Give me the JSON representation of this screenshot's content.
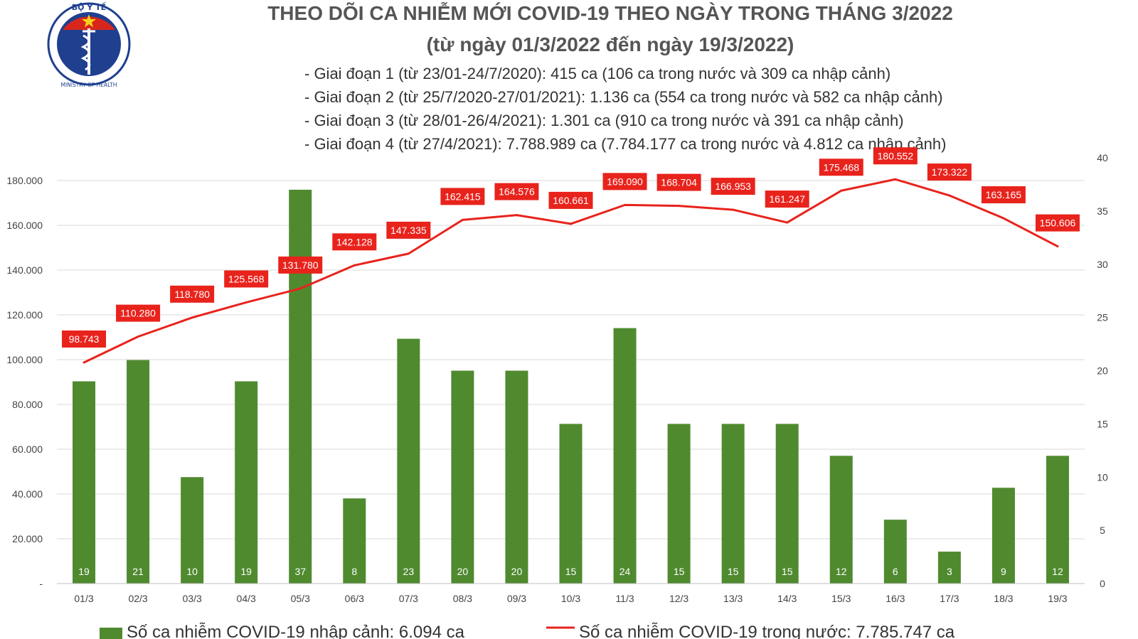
{
  "logo": {
    "top_text": "BỘ Y TẾ",
    "bottom_text": "MINISTRY OF HEALTH"
  },
  "header": {
    "title": "THEO DÕI CA NHIỄM MỚI COVID-19 THEO NGÀY TRONG THÁNG 3/2022",
    "subtitle": "(từ ngày 01/3/2022 đến ngày 19/3/2022)",
    "phases": [
      "- Giai đoạn 1 (từ 23/01-24/7/2020): 415 ca (106 ca trong nước và 309 ca nhập cảnh)",
      "- Giai đoạn 2 (từ 25/7/2020-27/01/2021): 1.136 ca (554 ca trong nước và 582 ca nhập cảnh)",
      "- Giai đoạn 3 (từ 28/01-26/4/2021): 1.301 ca (910 ca trong nước và 391 ca nhập cảnh)",
      "- Giai đoạn 4 (từ 27/4/2021): 7.788.989 ca (7.784.177 ca trong nước và 4.812 ca nhập cảnh)"
    ]
  },
  "colors": {
    "bar": "#4f8a2f",
    "line": "#e8231c",
    "label_bg": "#e8231c",
    "title": "#555555",
    "grid": "#d9d9d9"
  },
  "chart_data": {
    "type": "bar+line",
    "categories": [
      "01/3",
      "02/3",
      "03/3",
      "04/3",
      "05/3",
      "06/3",
      "07/3",
      "08/3",
      "09/3",
      "10/3",
      "11/3",
      "12/3",
      "13/3",
      "14/3",
      "15/3",
      "16/3",
      "17/3",
      "18/3",
      "19/3"
    ],
    "series": [
      {
        "name": "Số ca nhiễm COVID-19 nhập cảnh: 6.094 ca",
        "type": "bar",
        "axis": "right",
        "values": [
          19,
          21,
          10,
          19,
          37,
          8,
          23,
          20,
          20,
          15,
          24,
          15,
          15,
          15,
          12,
          6,
          3,
          9,
          12
        ],
        "labels": [
          "19",
          "21",
          "10",
          "19",
          "37",
          "8",
          "23",
          "20",
          "20",
          "15",
          "24",
          "15",
          "15",
          "15",
          "12",
          "6",
          "3",
          "9",
          "12"
        ]
      },
      {
        "name": "Số ca nhiễm COVID-19 trong nước: 7.785.747 ca",
        "type": "line",
        "axis": "left",
        "values": [
          98743,
          110280,
          118780,
          125568,
          131780,
          142128,
          147335,
          162415,
          164576,
          160661,
          169090,
          168704,
          166953,
          161247,
          175468,
          180552,
          173322,
          163165,
          150606
        ],
        "labels": [
          "98.743",
          "110.280",
          "118.780",
          "125.568",
          "131.780",
          "142.128",
          "147.335",
          "162.415",
          "164.576",
          "160.661",
          "169.090",
          "168.704",
          "166.953",
          "161.247",
          "175.468",
          "180.552",
          "173.322",
          "163.165",
          "150.606"
        ]
      }
    ],
    "left_axis": {
      "range": [
        0,
        180000
      ],
      "ticks": [
        0,
        20000,
        40000,
        60000,
        80000,
        100000,
        120000,
        140000,
        160000,
        180000
      ],
      "tick_labels": [
        "-",
        "20.000",
        "40.000",
        "60.000",
        "80.000",
        "100.000",
        "120.000",
        "140.000",
        "160.000",
        "180.000"
      ]
    },
    "right_axis": {
      "range": [
        0,
        40
      ],
      "ticks": [
        0,
        5,
        10,
        15,
        20,
        25,
        30,
        35,
        40
      ],
      "tick_labels": [
        "0",
        "5",
        "10",
        "15",
        "20",
        "25",
        "30",
        "35",
        "40"
      ]
    },
    "grid": true,
    "legend_position": "bottom"
  }
}
